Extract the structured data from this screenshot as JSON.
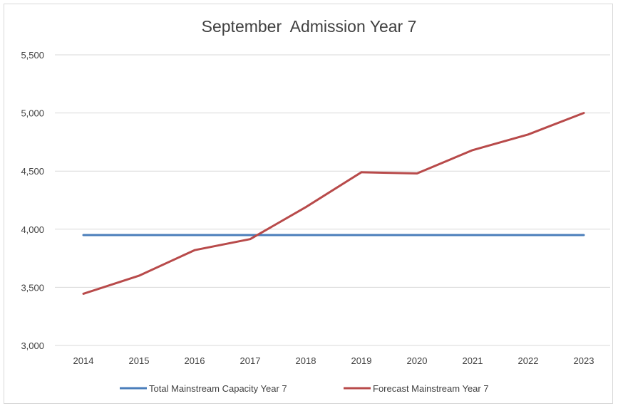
{
  "chart_data": {
    "type": "line",
    "title": "September  Admission Year 7",
    "xlabel": "",
    "ylabel": "",
    "categories": [
      "2014",
      "2015",
      "2016",
      "2017",
      "2018",
      "2019",
      "2020",
      "2021",
      "2022",
      "2023"
    ],
    "ylim": [
      3000,
      5500
    ],
    "yticks": [
      3000,
      3500,
      4000,
      4500,
      5000,
      5500
    ],
    "ytick_labels": [
      "3,000",
      "3,500",
      "4,000",
      "4,500",
      "5,000",
      "5,500"
    ],
    "grid": "horizontal",
    "legend_position": "bottom",
    "series": [
      {
        "name": "Total Mainstream Capacity Year 7",
        "color": "#4a7ebb",
        "values": [
          3950,
          3950,
          3950,
          3950,
          3950,
          3950,
          3950,
          3950,
          3950,
          3950
        ]
      },
      {
        "name": "Forecast Mainstream Year 7",
        "color": "#b84a4a",
        "values": [
          3445,
          3600,
          3820,
          3915,
          4190,
          4490,
          4480,
          4680,
          4815,
          5000
        ]
      }
    ]
  }
}
